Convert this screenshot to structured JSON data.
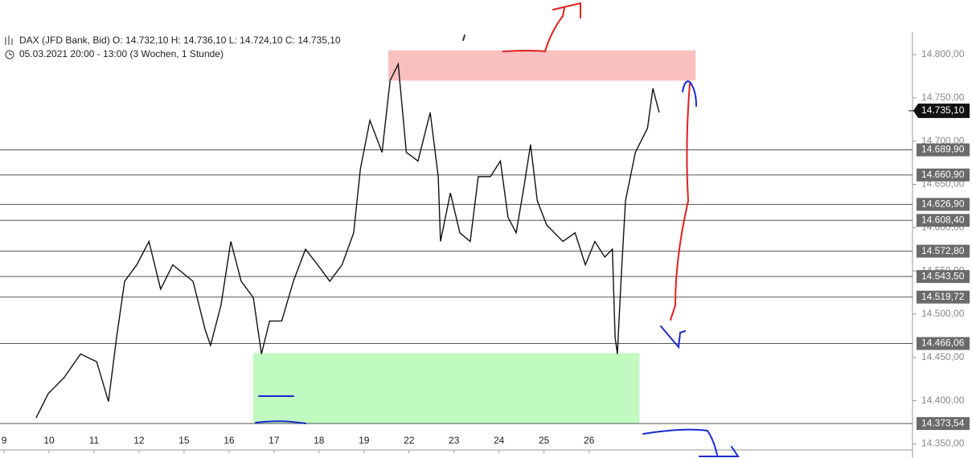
{
  "chart_data": {
    "type": "line",
    "title": "DAX (JFD Bank, Bid)  O: 14.732,10  H: 14.736,10  L: 14.724,10  C: 14.735,10",
    "subtitle": "05.03.2021 20:00 - 13:00  (3 Wochen, 1 Stunde)",
    "series": [
      {
        "color": "#111111",
        "x": [
          0.71,
          0.98,
          1.34,
          1.7,
          2.06,
          2.32,
          2.5,
          2.68,
          2.95,
          3.22,
          3.48,
          3.75,
          4.2,
          4.47,
          4.59,
          4.82,
          5.04,
          5.27,
          5.54,
          5.72,
          5.9,
          6.17,
          6.43,
          6.7,
          6.97,
          7.24,
          7.51,
          7.77,
          7.92,
          8.13,
          8.4,
          8.58,
          8.76,
          8.94,
          9.2,
          9.47,
          9.65,
          9.7,
          9.92,
          10.13,
          10.36,
          10.54,
          10.81,
          11.03,
          11.2,
          11.38,
          11.56,
          11.7,
          11.85,
          12.06,
          12.42,
          12.69,
          12.92,
          13.13,
          13.35,
          13.52,
          13.58,
          13.63,
          13.71,
          13.81,
          14.03,
          14.3,
          14.42,
          14.56
        ],
        "values": [
          14380,
          14408,
          14427,
          14454,
          14445,
          14399,
          14473,
          14538,
          14557,
          14584,
          14529,
          14557,
          14538,
          14482,
          14464,
          14510,
          14584,
          14538,
          14519,
          14454,
          14492,
          14492,
          14538,
          14575,
          14557,
          14538,
          14557,
          14594,
          14668,
          14724,
          14687,
          14770,
          14789,
          14687,
          14677,
          14733,
          14659,
          14584,
          14640,
          14594,
          14584,
          14659,
          14659,
          14677,
          14612,
          14594,
          14649,
          14696,
          14631,
          14603,
          14584,
          14594,
          14557,
          14584,
          14566,
          14575,
          14473,
          14454,
          14538,
          14631,
          14687,
          14715,
          14761,
          14733
        ]
      }
    ],
    "xlim": [
      -0.09,
      20.1
    ],
    "xticks": [
      {
        "value": 0,
        "label": "9"
      },
      {
        "value": 1,
        "label": "10"
      },
      {
        "value": 2,
        "label": "11"
      },
      {
        "value": 3,
        "label": "12"
      },
      {
        "value": 4,
        "label": "15"
      },
      {
        "value": 5,
        "label": "16"
      },
      {
        "value": 6,
        "label": "17"
      },
      {
        "value": 7,
        "label": "18"
      },
      {
        "value": 8,
        "label": "19"
      },
      {
        "value": 9,
        "label": "22"
      },
      {
        "value": 10,
        "label": "23"
      },
      {
        "value": 11,
        "label": "24"
      },
      {
        "value": 12,
        "label": "25"
      },
      {
        "value": 13,
        "label": "26"
      }
    ],
    "ylim": [
      14343,
      14826
    ],
    "yticks": [
      {
        "value": 14350,
        "label": "14.350,00"
      },
      {
        "value": 14400,
        "label": "14.400,00"
      },
      {
        "value": 14450,
        "label": "14.450,00"
      },
      {
        "value": 14500,
        "label": "14.500,00"
      },
      {
        "value": 14550,
        "label": "14.550,00"
      },
      {
        "value": 14600,
        "label": "14.600,00"
      },
      {
        "value": 14650,
        "label": "14.650,00"
      },
      {
        "value": 14700,
        "label": "14.700,00"
      },
      {
        "value": 14750,
        "label": "14.750,00"
      },
      {
        "value": 14800,
        "label": "14.800,00"
      }
    ],
    "grid": false,
    "levels": [
      {
        "value": 14689.9,
        "label": "14.689,90"
      },
      {
        "value": 14660.9,
        "label": "14.660,90"
      },
      {
        "value": 14626.9,
        "label": "14.626,90"
      },
      {
        "value": 14608.4,
        "label": "14.608,40"
      },
      {
        "value": 14572.8,
        "label": "14.572,80"
      },
      {
        "value": 14543.5,
        "label": "14.543,50"
      },
      {
        "value": 14519.72,
        "label": "14.519,72"
      },
      {
        "value": 14466.06,
        "label": "14.466,06"
      },
      {
        "value": 14373.54,
        "label": "14.373,54"
      }
    ],
    "current_price": {
      "value": 14735.1,
      "label": "14.735,10"
    },
    "zones": [
      {
        "x": [
          8.54,
          15.37
        ],
        "y": [
          14770,
          14805
        ],
        "color": "#f9c0c0"
      },
      {
        "x": [
          5.54,
          14.12
        ],
        "y": [
          14373.54,
          14455
        ],
        "color": "#c0fac0"
      }
    ]
  }
}
